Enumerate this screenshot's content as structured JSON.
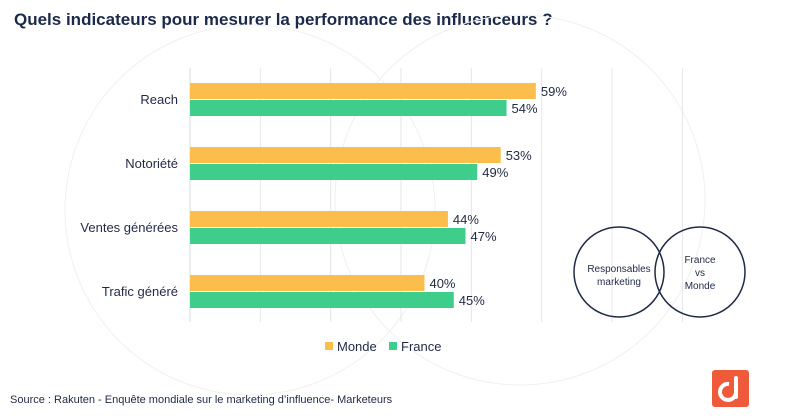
{
  "title": "Quels indicateurs pour mesurer la performance des influenceurs ?",
  "source": "Source : Rakuten -  Enquête mondiale sur le marketing d’influence- Marketeurs",
  "colors": {
    "monde": "#fbbd4c",
    "france": "#3ecd8b",
    "text": "#1f2a44"
  },
  "venn": {
    "left_label": [
      "Responsables",
      "marketing"
    ],
    "right_label": [
      "France",
      "vs",
      "Monde"
    ]
  },
  "chart_data": {
    "type": "bar",
    "orientation": "horizontal",
    "categories": [
      "Reach",
      "Notoriété",
      "Ventes générées",
      "Trafic généré"
    ],
    "series": [
      {
        "name": "Monde",
        "values": [
          59,
          53,
          44,
          40
        ],
        "labels": [
          "59%",
          "53%",
          "44%",
          "40%"
        ]
      },
      {
        "name": "France",
        "values": [
          54,
          49,
          47,
          45
        ],
        "labels": [
          "54%",
          "49%",
          "47%",
          "45%"
        ]
      }
    ],
    "xlim": [
      0,
      90
    ],
    "grid": true,
    "legend": "bottom"
  }
}
